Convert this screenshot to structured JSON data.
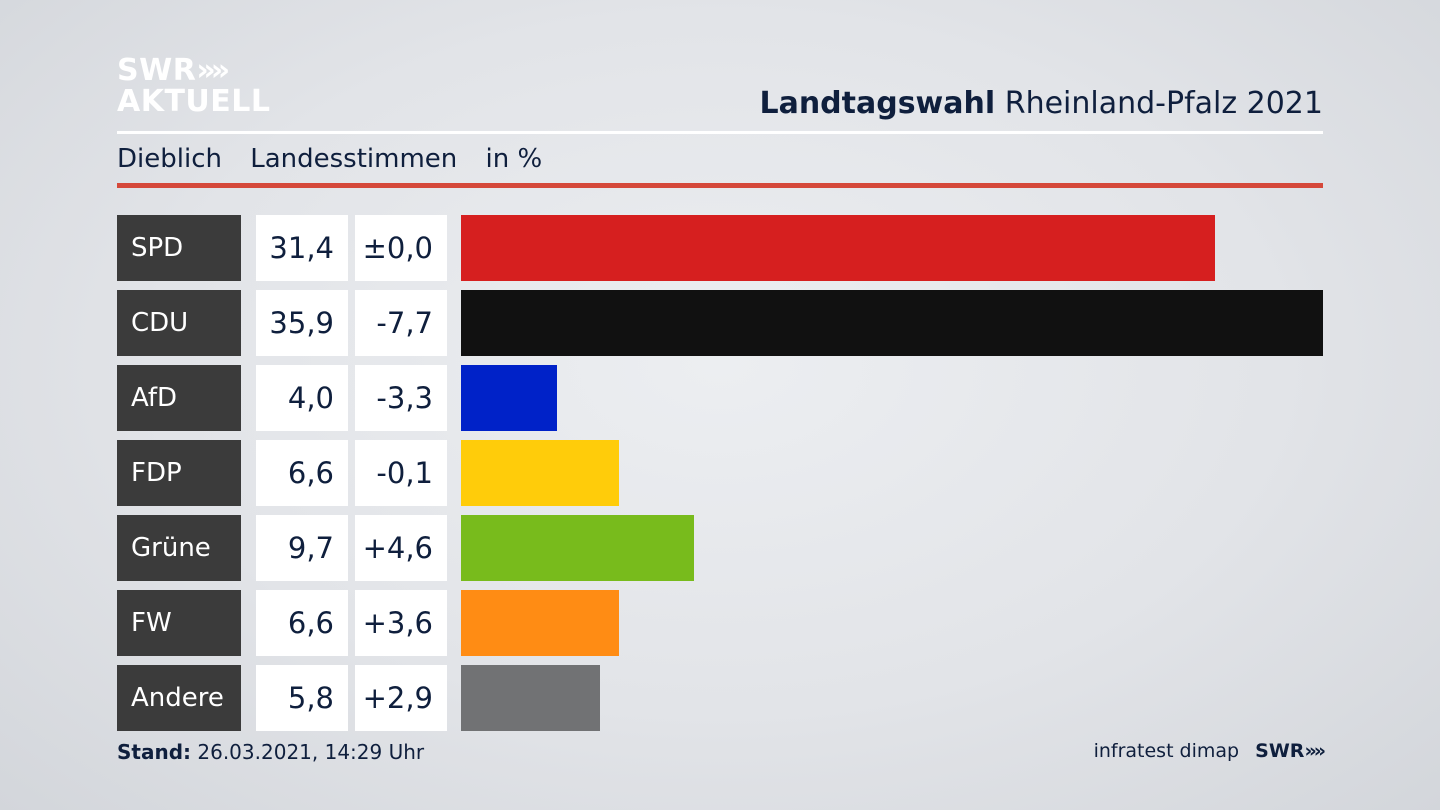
{
  "logo": {
    "line1": "SWR",
    "line1_arrows": "»",
    "line2": "AKTUELL"
  },
  "header": {
    "title_bold": "Landtagswahl",
    "title_rest": "Rheinland-Pfalz 2021"
  },
  "subheader": {
    "place": "Dieblich",
    "measure": "Landesstimmen",
    "unit": "in %"
  },
  "colors": {
    "rule": "#d5483a",
    "party_box": "#3b3b3b",
    "text": "#0f1f3d"
  },
  "chart_data": {
    "type": "bar",
    "orientation": "horizontal",
    "categories": [
      "SPD",
      "CDU",
      "AfD",
      "FDP",
      "Grüne",
      "FW",
      "Andere"
    ],
    "values": [
      31.4,
      35.9,
      4.0,
      6.6,
      9.7,
      6.6,
      5.8
    ],
    "value_labels": [
      "31,4",
      "35,9",
      "4,0",
      "6,6",
      "9,7",
      "6,6",
      "5,8"
    ],
    "diff_labels": [
      "±0,0",
      "-7,7",
      "-3,3",
      "-0,1",
      "+4,6",
      "+3,6",
      "+2,9"
    ],
    "bar_colors": [
      "#d61f1f",
      "#111111",
      "#0022c8",
      "#ffcc0a",
      "#78bb1c",
      "#ff8c14",
      "#717274"
    ],
    "xlim": [
      0,
      35.9
    ],
    "grid": false
  },
  "footer": {
    "stand_label": "Stand:",
    "stand_value": "26.03.2021, 14:29 Uhr",
    "source": "infratest dimap",
    "brand": "SWR",
    "brand_arrows": "»"
  }
}
